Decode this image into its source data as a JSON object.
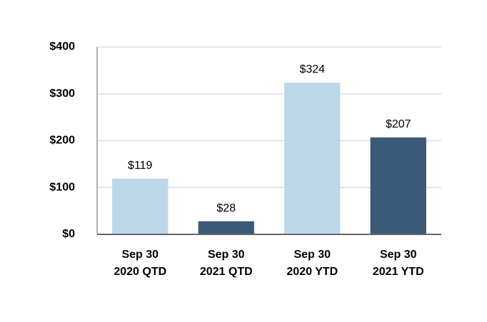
{
  "chart_data": {
    "type": "bar",
    "categories": [
      [
        "Sep 30",
        "2020 QTD"
      ],
      [
        "Sep 30",
        "2021 QTD"
      ],
      [
        "Sep 30",
        "2020 YTD"
      ],
      [
        "Sep 30",
        "2021 YTD"
      ]
    ],
    "values": [
      119,
      28,
      324,
      207
    ],
    "value_labels": [
      "$119",
      "$28",
      "$324",
      "$207"
    ],
    "colors": [
      "#bdd7ea",
      "#3b5a78",
      "#bdd7ea",
      "#3b5a78"
    ],
    "ylim": [
      0,
      400
    ],
    "yticks": [
      {
        "value": 0,
        "label": "$0"
      },
      {
        "value": 100,
        "label": "$100"
      },
      {
        "value": 200,
        "label": "$200"
      },
      {
        "value": 300,
        "label": "$300"
      },
      {
        "value": 400,
        "label": "$400"
      }
    ],
    "grid": true
  }
}
